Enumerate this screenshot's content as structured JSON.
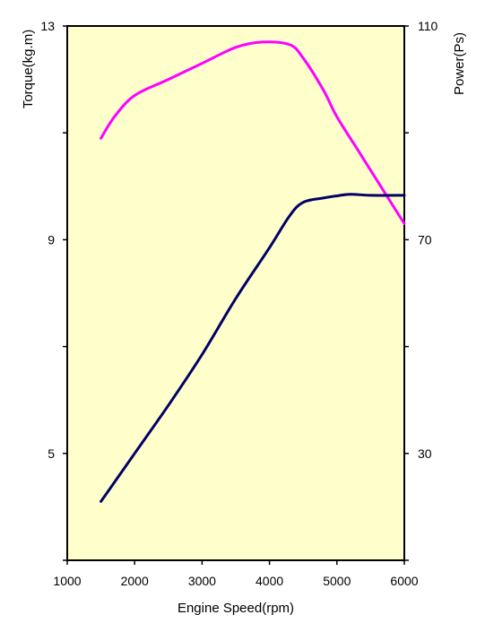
{
  "chart_data": {
    "type": "line",
    "title": "",
    "xlabel": "Engine Speed(rpm)",
    "ylabel_left": "Torque(kg.m)",
    "ylabel_right": "Power(Ps)",
    "xlim": [
      1000,
      6000
    ],
    "ylim_left": [
      3,
      13
    ],
    "ylim_right": [
      10,
      110
    ],
    "x_ticks": [
      1000,
      2000,
      3000,
      4000,
      5000,
      6000
    ],
    "y_left_ticks": [
      3,
      5,
      7,
      9,
      11,
      13
    ],
    "y_left_tick_labels": [
      "",
      "5",
      "",
      "9",
      "",
      "13"
    ],
    "y_right_ticks": [
      10,
      30,
      50,
      70,
      90,
      110
    ],
    "y_right_tick_labels": [
      "",
      "30",
      "",
      "70",
      "",
      "110"
    ],
    "grid": false,
    "legend": "none",
    "plot_background": "#ffffcc",
    "series": [
      {
        "axis": "left",
        "color": "#ff00ff",
        "x": [
          1500,
          1700,
          2000,
          2500,
          3000,
          3500,
          3900,
          4300,
          4500,
          4800,
          5000,
          5300,
          5600,
          6000
        ],
        "y": [
          10.9,
          11.3,
          11.7,
          12.0,
          12.3,
          12.6,
          12.7,
          12.65,
          12.4,
          11.8,
          11.3,
          10.7,
          10.1,
          9.3
        ]
      },
      {
        "axis": "right",
        "color": "#000066",
        "x": [
          1500,
          2000,
          2500,
          3000,
          3500,
          4000,
          4300,
          4500,
          4800,
          5000,
          5200,
          5500,
          6000
        ],
        "y": [
          21,
          30,
          39,
          48.5,
          59,
          68.5,
          74.5,
          77,
          77.8,
          78.2,
          78.5,
          78.3,
          78.3
        ]
      }
    ]
  }
}
